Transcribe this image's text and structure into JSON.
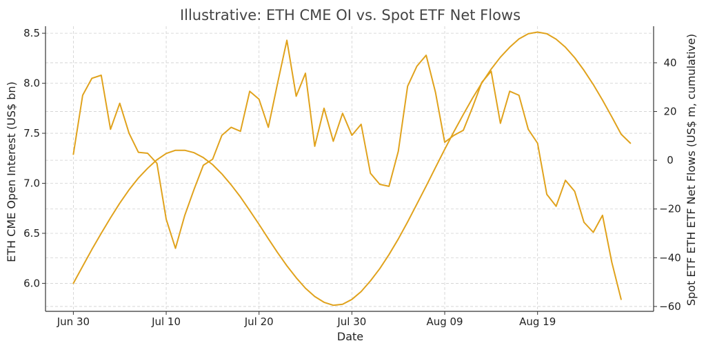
{
  "chart_data": {
    "type": "line",
    "title": "Illustrative: ETH CME OI vs. Spot ETF Net Flows",
    "xlabel": "Date",
    "ylabel_left": "ETH CME Open Interest (US$ bn)",
    "ylabel_right": "Spot ETF ETH ETF Net Flows (US$ m, cumulative)",
    "x_start": "2025-06-30",
    "x_ticks": [
      {
        "day": 0,
        "label": "Jun 30"
      },
      {
        "day": 10,
        "label": "Jul 10"
      },
      {
        "day": 20,
        "label": "Jul 20"
      },
      {
        "day": 30,
        "label": "Jul 30"
      },
      {
        "day": 40,
        "label": "Aug 09"
      },
      {
        "day": 50,
        "label": "Aug 19"
      }
    ],
    "xlim": [
      -3,
      62.5
    ],
    "y_left": {
      "lim": [
        5.72,
        8.57
      ],
      "ticks": [
        6.0,
        6.5,
        7.0,
        7.5,
        8.0,
        8.5
      ],
      "tick_labels": [
        "6.0",
        "6.5",
        "7.0",
        "7.5",
        "8.0",
        "8.5"
      ]
    },
    "y_right": {
      "lim": [
        -62,
        55
      ],
      "ticks": [
        -60,
        -40,
        -20,
        0,
        20,
        40
      ],
      "tick_labels": [
        "−60",
        "−40",
        "−20",
        "0",
        "20",
        "40"
      ]
    },
    "grid": true,
    "colors": {
      "line": "#e0a21c",
      "text": "#222222",
      "title": "#444444"
    },
    "series": [
      {
        "axis": "left",
        "values": [
          7.29,
          7.88,
          8.05,
          8.08,
          7.54,
          7.8,
          7.5,
          7.31,
          7.3,
          7.2,
          6.64,
          6.35,
          6.68,
          6.94,
          7.18,
          7.24,
          7.48,
          7.56,
          7.52,
          7.92,
          7.84,
          7.56,
          8.0,
          8.43,
          7.87,
          8.1,
          7.37,
          7.75,
          7.42,
          7.7,
          7.48,
          7.59,
          7.1,
          6.99,
          6.97,
          7.32,
          7.97,
          8.17,
          8.28,
          7.91,
          7.41,
          7.48,
          7.53,
          7.76,
          8.01,
          8.12,
          7.6,
          7.92,
          7.88,
          7.54,
          7.4,
          6.89,
          6.77,
          7.03,
          6.92,
          6.61,
          6.51,
          6.68,
          6.21,
          5.84
        ]
      },
      {
        "axis": "right",
        "values": [
          -50.5,
          -43.5,
          -36.6,
          -30.0,
          -23.6,
          -17.6,
          -12.1,
          -7.3,
          -3.3,
          0.2,
          2.8,
          4.1,
          4.1,
          3.1,
          1.1,
          -1.8,
          -5.6,
          -10.1,
          -15.1,
          -20.6,
          -26.3,
          -32.2,
          -37.9,
          -43.3,
          -48.2,
          -52.5,
          -55.9,
          -58.3,
          -59.5,
          -59.1,
          -57.1,
          -53.9,
          -49.5,
          -44.5,
          -38.7,
          -32.3,
          -25.3,
          -18.0,
          -10.6,
          -3.0,
          4.5,
          11.8,
          18.8,
          25.5,
          31.7,
          37.4,
          42.3,
          46.4,
          49.8,
          51.9,
          52.6,
          51.9,
          49.7,
          46.4,
          42.1,
          36.9,
          31.1,
          24.7,
          17.8,
          10.7,
          7.0
        ]
      }
    ]
  }
}
